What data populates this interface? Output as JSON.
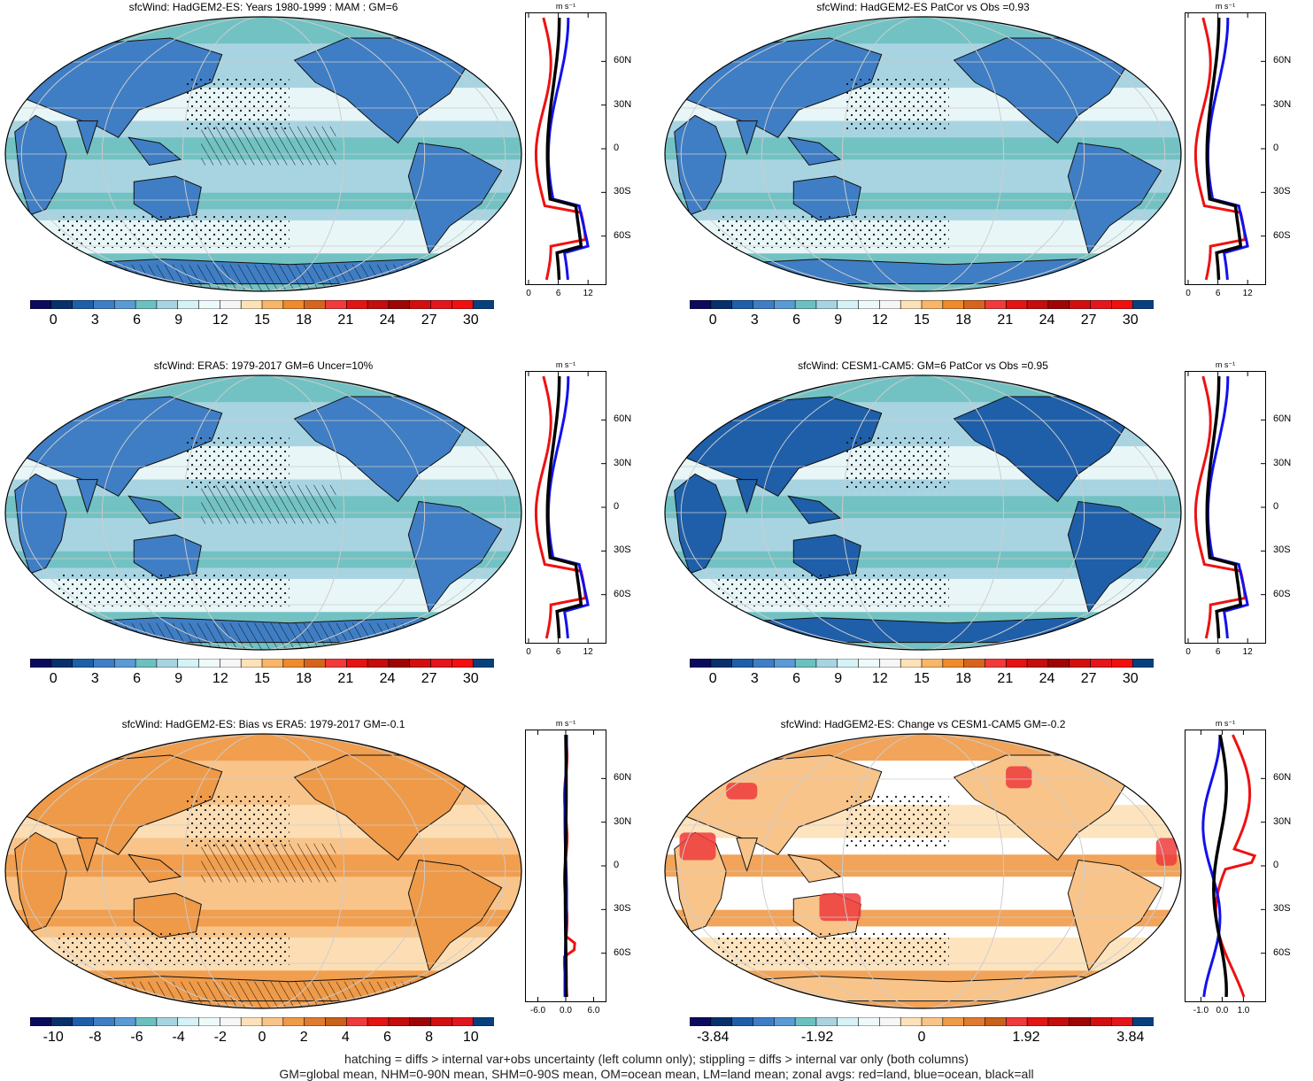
{
  "footer": {
    "line1": "hatching = diffs > internal var+obs uncertainty (left column only); stippling = diffs > internal var only (both columns)",
    "line2": "GM=global mean, NHM=0-90N mean, SHM=0-90S mean, OM=ocean mean, LM=land mean; zonal avgs: red=land, blue=ocean, black=all"
  },
  "zonal_unit": "m s⁻¹",
  "lat_ticks": [
    "60N",
    "30N",
    "0",
    "30S",
    "60S"
  ],
  "palettes": {
    "seq": [
      "#0b0b5e",
      "#08306b",
      "#1f5fa9",
      "#3f7ec4",
      "#5b9bd5",
      "#6cc0c0",
      "#a8d4e2",
      "#d6f2f5",
      "#eefafa",
      "#f6f6f6",
      "#fde1b8",
      "#f8b66a",
      "#ef8a2e",
      "#d5651e",
      "#ef3b3b",
      "#e31414",
      "#c40d0d",
      "#9e0505",
      "#d10f0f",
      "#e2161c",
      "#f01010",
      "#08407e"
    ],
    "div": [
      "#0b0b5e",
      "#08306b",
      "#1f5fa9",
      "#3f7ec4",
      "#5b9bd5",
      "#6cc0c0",
      "#a8d4e2",
      "#d6f2f5",
      "#eefafa",
      "#f6f6f6",
      "#fde1b8",
      "#f8c48a",
      "#ef9a48",
      "#e07a30",
      "#c9601c",
      "#ef3b3b",
      "#e31414",
      "#c40d0d",
      "#9e0505",
      "#d10f0f",
      "#e2161c",
      "#08407e"
    ]
  },
  "panels": [
    {
      "id": "p1",
      "title": "sfcWind: HadGEM2-ES: Years 1980-1999 : MAM : GM=6",
      "map_colors": {
        "ocean": "#a8d4e2",
        "land": "#3f7ec4",
        "band1": "#6cc0c0",
        "band2": "#eefafa"
      },
      "hatched": true,
      "palette": "seq",
      "cbar_labels": [
        "0",
        "3",
        "6",
        "9",
        "12",
        "15",
        "18",
        "21",
        "24",
        "27",
        "30"
      ],
      "zonal_xticks": [
        "0",
        "6",
        "12"
      ],
      "zonal_xvals": [
        0,
        6,
        12
      ],
      "zonal_xrange": [
        0,
        15
      ]
    },
    {
      "id": "p2",
      "title": "sfcWind: HadGEM2-ES PatCor vs Obs =0.93",
      "map_colors": {
        "ocean": "#a8d4e2",
        "land": "#3f7ec4",
        "band1": "#6cc0c0",
        "band2": "#eefafa"
      },
      "hatched": false,
      "palette": "seq",
      "cbar_labels": [
        "0",
        "3",
        "6",
        "9",
        "12",
        "15",
        "18",
        "21",
        "24",
        "27",
        "30"
      ],
      "zonal_xticks": [
        "0",
        "6",
        "12"
      ],
      "zonal_xvals": [
        0,
        6,
        12
      ],
      "zonal_xrange": [
        0,
        15
      ]
    },
    {
      "id": "p3",
      "title": "sfcWind: ERA5: 1979-2017 GM=6 Uncer=10%",
      "map_colors": {
        "ocean": "#a8d4e2",
        "land": "#3f7ec4",
        "band1": "#6cc0c0",
        "band2": "#eefafa"
      },
      "hatched": true,
      "palette": "seq",
      "cbar_labels": [
        "0",
        "3",
        "6",
        "9",
        "12",
        "15",
        "18",
        "21",
        "24",
        "27",
        "30"
      ],
      "zonal_xticks": [
        "0",
        "6",
        "12"
      ],
      "zonal_xvals": [
        0,
        6,
        12
      ],
      "zonal_xrange": [
        0,
        15
      ]
    },
    {
      "id": "p4",
      "title": "sfcWind: CESM1-CAM5: GM=6 PatCor vs Obs =0.95",
      "map_colors": {
        "ocean": "#a8d4e2",
        "land": "#1f5fa9",
        "band1": "#6cc0c0",
        "band2": "#eefafa"
      },
      "hatched": false,
      "palette": "seq",
      "cbar_labels": [
        "0",
        "3",
        "6",
        "9",
        "12",
        "15",
        "18",
        "21",
        "24",
        "27",
        "30"
      ],
      "zonal_xticks": [
        "0",
        "6",
        "12"
      ],
      "zonal_xvals": [
        0,
        6,
        12
      ],
      "zonal_xrange": [
        0,
        15
      ]
    },
    {
      "id": "p5",
      "title": "sfcWind: HadGEM2-ES: Bias vs ERA5: 1979-2017 GM=-0.1",
      "map_colors": {
        "ocean": "#f8c48a",
        "land": "#ef9a48",
        "band1": "#ef9a48",
        "band2": "#fde1b8"
      },
      "hatched": true,
      "palette": "div",
      "cbar_labels": [
        "-10",
        "-8",
        "-6",
        "-4",
        "-2",
        "0",
        "2",
        "4",
        "6",
        "8",
        "10"
      ],
      "zonal_xticks": [
        "-6.0",
        "0.0",
        "6.0"
      ],
      "zonal_xvals": [
        -6,
        0,
        6
      ],
      "zonal_xrange": [
        -8,
        8
      ]
    },
    {
      "id": "p6",
      "title": "sfcWind: HadGEM2-ES: Change vs CESM1-CAM5 GM=-0.2",
      "map_colors": {
        "ocean": "#ffffff",
        "land": "#f8c48a",
        "band1": "#ef9a48",
        "band2": "#fde1b8"
      },
      "hatched": false,
      "palette": "div",
      "cbar_labels": [
        "-3.84",
        "-1.92",
        "0",
        "1.92",
        "3.84"
      ],
      "zonal_xticks": [
        "-1.0",
        "0.0",
        "1.0"
      ],
      "zonal_xvals": [
        -1,
        0,
        1
      ],
      "zonal_xrange": [
        -1.6,
        1.9
      ]
    }
  ]
}
